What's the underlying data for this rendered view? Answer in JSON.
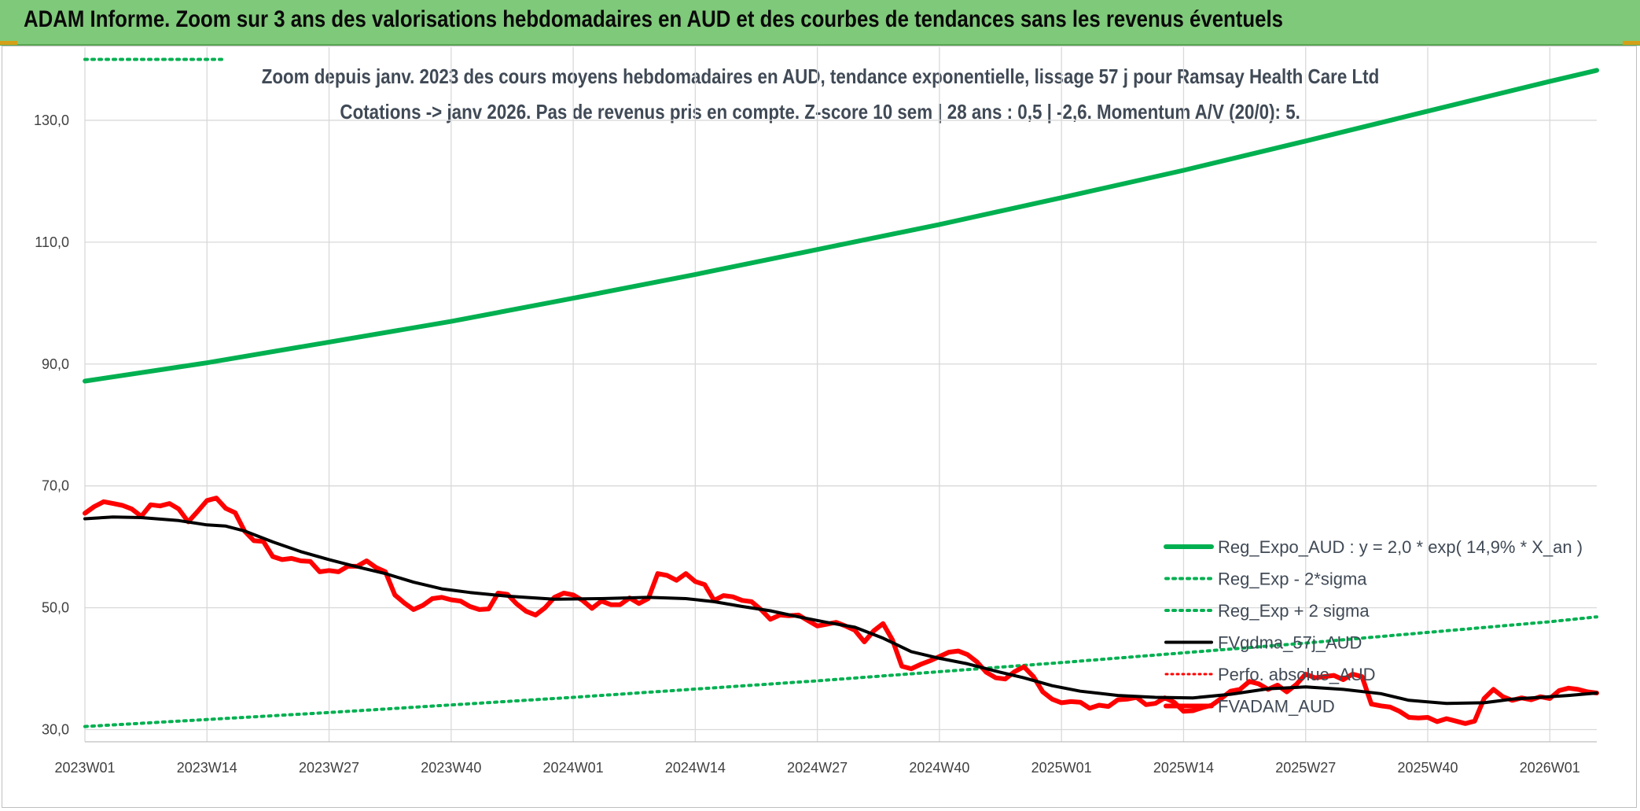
{
  "header": {
    "title": "ADAM Informe. Zoom sur 3 ans des valorisations hebdomadaires en AUD et des courbes de tendances sans les revenus éventuels"
  },
  "chart_data": {
    "type": "line",
    "title": "Zoom depuis janv. 2023 des cours moyens hebdomadaires en AUD, tendance exponentielle, lissage 57 j pour Ramsay Health Care Ltd",
    "subtitle": "Cotations -> janv 2026. Pas de revenus pris en compte. Z-score 10 sem | 28 ans : 0,5 | -2,6. Momentum A/V (20/0): 5.",
    "xlabel": "",
    "ylabel": "",
    "ylim": [
      28,
      142
    ],
    "y_ticks": [
      "30,0",
      "50,0",
      "70,0",
      "90,0",
      "110,0",
      "130,0"
    ],
    "y_tick_values": [
      30,
      50,
      70,
      90,
      110,
      130
    ],
    "x_ticks": [
      "2023W01",
      "2023W14",
      "2023W27",
      "2023W40",
      "2024W01",
      "2024W14",
      "2024W27",
      "2024W40",
      "2025W01",
      "2025W14",
      "2025W27",
      "2025W40",
      "2026W01"
    ],
    "x_range_weeks": [
      0,
      161
    ],
    "grid": true,
    "legend_position": "bottom-right",
    "series": [
      {
        "name": "Reg_Expo_AUD : y = 2,0 * exp( 14,9% *  X_an )",
        "color": "#00b050",
        "style": "solid-thick",
        "points": [
          [
            0,
            87.2
          ],
          [
            13,
            90.2
          ],
          [
            26,
            93.6
          ],
          [
            39,
            97.0
          ],
          [
            52,
            100.8
          ],
          [
            65,
            104.7
          ],
          [
            78,
            108.8
          ],
          [
            91,
            112.9
          ],
          [
            104,
            117.3
          ],
          [
            117,
            121.8
          ],
          [
            130,
            126.6
          ],
          [
            143,
            131.5
          ],
          [
            156,
            136.4
          ],
          [
            161,
            138.2
          ]
        ]
      },
      {
        "name": "Reg_Exp - 2*sigma",
        "color": "#00b050",
        "style": "dotted",
        "points": [
          [
            0,
            30.5
          ],
          [
            26,
            32.8
          ],
          [
            52,
            35.3
          ],
          [
            78,
            38.0
          ],
          [
            104,
            41.0
          ],
          [
            130,
            44.2
          ],
          [
            156,
            47.7
          ],
          [
            161,
            48.5
          ]
        ]
      },
      {
        "name": "Reg_Exp + 2 sigma",
        "color": "#00b050",
        "style": "dotted",
        "points": [
          [
            0,
            140
          ],
          [
            14.6,
            140
          ]
        ]
      },
      {
        "name": "FVgdma_57j_AUD",
        "color": "#000000",
        "style": "solid",
        "points": [
          [
            0,
            64.6
          ],
          [
            3,
            64.9
          ],
          [
            6,
            64.8
          ],
          [
            10,
            64.3
          ],
          [
            13,
            63.6
          ],
          [
            15,
            63.4
          ],
          [
            17,
            62.6
          ],
          [
            20,
            60.8
          ],
          [
            23,
            59.2
          ],
          [
            26,
            57.9
          ],
          [
            29,
            56.7
          ],
          [
            32,
            55.6
          ],
          [
            35,
            54.2
          ],
          [
            38,
            53.1
          ],
          [
            41,
            52.5
          ],
          [
            45,
            51.9
          ],
          [
            50,
            51.4
          ],
          [
            55,
            51.5
          ],
          [
            60,
            51.7
          ],
          [
            64,
            51.5
          ],
          [
            67,
            51.0
          ],
          [
            70,
            50.2
          ],
          [
            73,
            49.5
          ],
          [
            76,
            48.5
          ],
          [
            79,
            47.6
          ],
          [
            82,
            46.8
          ],
          [
            85,
            45.0
          ],
          [
            88,
            42.8
          ],
          [
            91,
            41.7
          ],
          [
            94,
            40.8
          ],
          [
            97,
            39.6
          ],
          [
            100,
            38.5
          ],
          [
            103,
            37.2
          ],
          [
            106,
            36.3
          ],
          [
            110,
            35.6
          ],
          [
            114,
            35.3
          ],
          [
            118,
            35.2
          ],
          [
            122,
            35.8
          ],
          [
            126,
            36.7
          ],
          [
            130,
            37.0
          ],
          [
            134,
            36.6
          ],
          [
            138,
            35.9
          ],
          [
            141,
            34.8
          ],
          [
            145,
            34.3
          ],
          [
            149,
            34.4
          ],
          [
            152,
            35.0
          ],
          [
            155,
            35.3
          ],
          [
            158,
            35.6
          ],
          [
            161,
            36.0
          ]
        ]
      },
      {
        "name": "Perfo. absolue_AUD",
        "color": "#ff0000",
        "style": "dotted-thin",
        "points": []
      },
      {
        "name": "FVADAM_AUD",
        "color": "#ff0000",
        "style": "solid-thick",
        "points": [
          [
            0,
            65.5
          ],
          [
            1,
            66.6
          ],
          [
            2,
            67.4
          ],
          [
            3,
            67.1
          ],
          [
            4,
            66.8
          ],
          [
            5,
            66.2
          ],
          [
            6,
            65.0
          ],
          [
            7,
            66.9
          ],
          [
            8,
            66.7
          ],
          [
            9,
            67.1
          ],
          [
            10,
            66.2
          ],
          [
            11,
            64.1
          ],
          [
            12,
            65.8
          ],
          [
            13,
            67.6
          ],
          [
            14,
            68.0
          ],
          [
            15,
            66.3
          ],
          [
            16,
            65.6
          ],
          [
            17,
            62.6
          ],
          [
            18,
            61.0
          ],
          [
            19,
            60.9
          ],
          [
            20,
            58.4
          ],
          [
            21,
            57.9
          ],
          [
            22,
            58.1
          ],
          [
            23,
            57.7
          ],
          [
            24,
            57.6
          ],
          [
            25,
            55.9
          ],
          [
            26,
            56.1
          ],
          [
            27,
            55.9
          ],
          [
            28,
            56.8
          ],
          [
            29,
            56.8
          ],
          [
            30,
            57.7
          ],
          [
            31,
            56.6
          ],
          [
            32,
            55.9
          ],
          [
            33,
            52.1
          ],
          [
            34,
            50.8
          ],
          [
            35,
            49.7
          ],
          [
            36,
            50.4
          ],
          [
            37,
            51.5
          ],
          [
            38,
            51.7
          ],
          [
            39,
            51.3
          ],
          [
            40,
            51.1
          ],
          [
            41,
            50.2
          ],
          [
            42,
            49.7
          ],
          [
            43,
            49.8
          ],
          [
            44,
            52.4
          ],
          [
            45,
            52.2
          ],
          [
            46,
            50.6
          ],
          [
            47,
            49.4
          ],
          [
            48,
            48.8
          ],
          [
            49,
            50.0
          ],
          [
            50,
            51.7
          ],
          [
            51,
            52.4
          ],
          [
            52,
            52.1
          ],
          [
            53,
            51.2
          ],
          [
            54,
            49.9
          ],
          [
            55,
            51.1
          ],
          [
            56,
            50.5
          ],
          [
            57,
            50.5
          ],
          [
            58,
            51.6
          ],
          [
            59,
            50.7
          ],
          [
            60,
            51.5
          ],
          [
            61,
            55.6
          ],
          [
            62,
            55.3
          ],
          [
            63,
            54.5
          ],
          [
            64,
            55.6
          ],
          [
            65,
            54.3
          ],
          [
            66,
            53.8
          ],
          [
            67,
            51.2
          ],
          [
            68,
            52.0
          ],
          [
            69,
            51.8
          ],
          [
            70,
            51.2
          ],
          [
            71,
            51.0
          ],
          [
            72,
            49.7
          ],
          [
            73,
            48.1
          ],
          [
            74,
            48.8
          ],
          [
            75,
            48.7
          ],
          [
            76,
            48.8
          ],
          [
            77,
            47.9
          ],
          [
            78,
            47.0
          ],
          [
            79,
            47.3
          ],
          [
            80,
            47.6
          ],
          [
            81,
            47.0
          ],
          [
            82,
            46.3
          ],
          [
            83,
            44.4
          ],
          [
            84,
            46.2
          ],
          [
            85,
            47.4
          ],
          [
            86,
            44.7
          ],
          [
            87,
            40.4
          ],
          [
            88,
            40.0
          ],
          [
            89,
            40.7
          ],
          [
            90,
            41.3
          ],
          [
            91,
            42.0
          ],
          [
            92,
            42.7
          ],
          [
            93,
            42.9
          ],
          [
            94,
            42.3
          ],
          [
            95,
            41.1
          ],
          [
            96,
            39.4
          ],
          [
            97,
            38.5
          ],
          [
            98,
            38.3
          ],
          [
            99,
            39.5
          ],
          [
            100,
            40.3
          ],
          [
            101,
            38.7
          ],
          [
            102,
            36.2
          ],
          [
            103,
            35.0
          ],
          [
            104,
            34.4
          ],
          [
            105,
            34.6
          ],
          [
            106,
            34.5
          ],
          [
            107,
            33.5
          ],
          [
            108,
            34.0
          ],
          [
            109,
            33.8
          ],
          [
            110,
            34.9
          ],
          [
            111,
            35.0
          ],
          [
            112,
            35.3
          ],
          [
            113,
            34.1
          ],
          [
            114,
            34.3
          ],
          [
            115,
            35.2
          ],
          [
            116,
            34.5
          ],
          [
            117,
            33.0
          ],
          [
            118,
            33.1
          ],
          [
            119,
            33.6
          ],
          [
            120,
            34.0
          ],
          [
            121,
            35.1
          ],
          [
            122,
            36.3
          ],
          [
            123,
            36.6
          ],
          [
            124,
            37.9
          ],
          [
            125,
            37.5
          ],
          [
            126,
            36.6
          ],
          [
            127,
            37.3
          ],
          [
            128,
            36.2
          ],
          [
            129,
            37.4
          ],
          [
            130,
            39.1
          ],
          [
            131,
            38.5
          ],
          [
            132,
            38.7
          ],
          [
            133,
            38.9
          ],
          [
            134,
            38.2
          ],
          [
            135,
            39.1
          ],
          [
            136,
            38.7
          ],
          [
            137,
            34.2
          ],
          [
            138,
            33.9
          ],
          [
            139,
            33.7
          ],
          [
            140,
            33.0
          ],
          [
            141,
            32.0
          ],
          [
            142,
            31.9
          ],
          [
            143,
            32.0
          ],
          [
            144,
            31.3
          ],
          [
            145,
            31.8
          ],
          [
            146,
            31.4
          ],
          [
            147,
            31.0
          ],
          [
            148,
            31.4
          ],
          [
            149,
            35.1
          ],
          [
            150,
            36.6
          ],
          [
            151,
            35.4
          ],
          [
            152,
            34.8
          ],
          [
            153,
            35.2
          ],
          [
            154,
            34.9
          ],
          [
            155,
            35.4
          ],
          [
            156,
            35.1
          ],
          [
            157,
            36.4
          ],
          [
            158,
            36.8
          ],
          [
            159,
            36.6
          ],
          [
            160,
            36.2
          ],
          [
            161,
            36.0
          ]
        ]
      }
    ]
  }
}
